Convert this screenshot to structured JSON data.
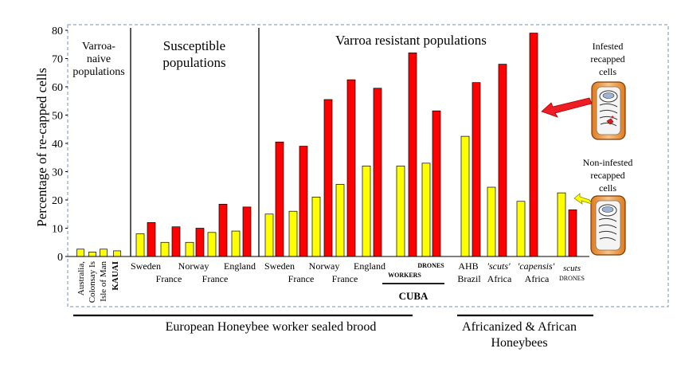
{
  "chart_data": {
    "type": "bar",
    "ylabel": "Percentage of re-capped cells",
    "ylim": [
      0,
      80
    ],
    "yticks": [
      0,
      10,
      20,
      30,
      40,
      50,
      60,
      70,
      80
    ],
    "series_colors": {
      "yellow": "#ffff00",
      "red": "#ff0000"
    },
    "bars": [
      {
        "color": "yellow",
        "value": 2.6
      },
      {
        "color": "yellow",
        "value": 1.6
      },
      {
        "color": "yellow",
        "value": 2.6
      },
      {
        "color": "yellow",
        "value": 2.0
      },
      {
        "color": "yellow",
        "value": 8.0
      },
      {
        "color": "red",
        "value": 12.0
      },
      {
        "color": "yellow",
        "value": 5.0
      },
      {
        "color": "red",
        "value": 10.5
      },
      {
        "color": "yellow",
        "value": 5.0
      },
      {
        "color": "red",
        "value": 10.0
      },
      {
        "color": "yellow",
        "value": 8.5
      },
      {
        "color": "red",
        "value": 18.5
      },
      {
        "color": "yellow",
        "value": 9.0
      },
      {
        "color": "red",
        "value": 17.5
      },
      {
        "color": "yellow",
        "value": 15.0
      },
      {
        "color": "red",
        "value": 40.5
      },
      {
        "color": "yellow",
        "value": 16.0
      },
      {
        "color": "red",
        "value": 39.0
      },
      {
        "color": "yellow",
        "value": 21.0
      },
      {
        "color": "red",
        "value": 55.5
      },
      {
        "color": "yellow",
        "value": 25.5
      },
      {
        "color": "red",
        "value": 62.5
      },
      {
        "color": "yellow",
        "value": 32.0
      },
      {
        "color": "red",
        "value": 59.5
      },
      {
        "color": "yellow",
        "value": 32.0
      },
      {
        "color": "red",
        "value": 72.0
      },
      {
        "color": "yellow",
        "value": 33.0
      },
      {
        "color": "red",
        "value": 51.5
      },
      {
        "color": "yellow",
        "value": 42.5
      },
      {
        "color": "red",
        "value": 61.5
      },
      {
        "color": "yellow",
        "value": 24.5
      },
      {
        "color": "red",
        "value": 68.0
      },
      {
        "color": "yellow",
        "value": 19.5
      },
      {
        "color": "red",
        "value": 79.0
      },
      {
        "color": "yellow",
        "value": 22.5
      },
      {
        "color": "red",
        "value": 16.5
      }
    ],
    "section_labels": {
      "naive": [
        "Varroa-",
        "naive",
        "populations"
      ],
      "susceptible": [
        "Susceptible",
        "populations"
      ],
      "resistant": "Varroa resistant populations"
    },
    "naive_labels": [
      "Australia,",
      "Colonsay Is",
      "Isle of Man",
      "KAUAI"
    ],
    "category_labels_top": [
      "Sweden",
      "Norway",
      "England",
      "Sweden",
      "Norway",
      "England",
      "DRONES",
      "AHB",
      "'scuts'",
      "'capensis'",
      "scuts"
    ],
    "category_labels_bottom": [
      "France",
      "France",
      "France",
      "France",
      "WORKERS",
      "Brazil",
      "Africa",
      "Africa",
      "DRONES"
    ],
    "group_labels": {
      "cuba": "CUBA",
      "european": "European Honeybee worker sealed brood",
      "african": [
        "Africanized & African",
        "Honeybees"
      ]
    },
    "annotations": {
      "infested": [
        "Infested",
        "recapped",
        "cells"
      ],
      "non_infested": [
        "Non-infested",
        "recapped",
        "cells"
      ]
    }
  }
}
